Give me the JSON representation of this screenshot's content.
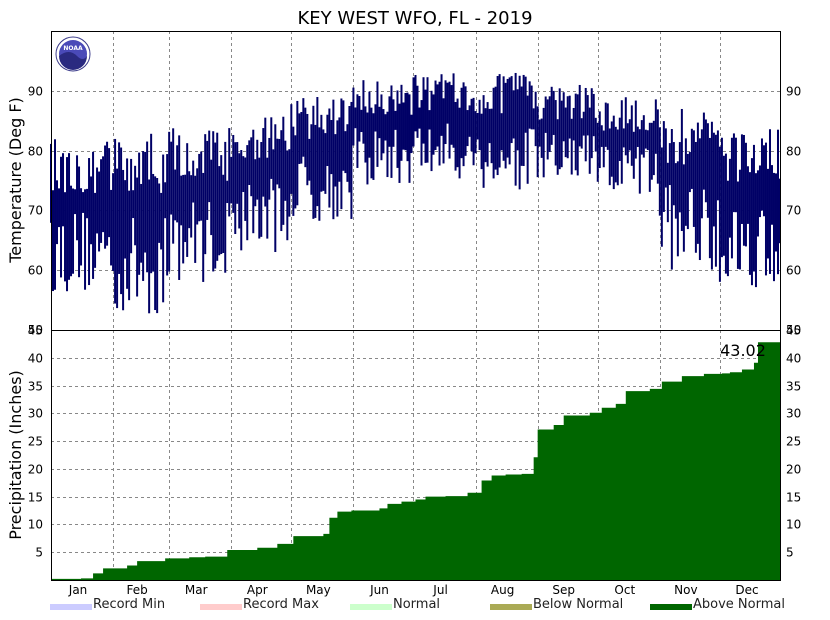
{
  "chart_data": [
    {
      "type": "bar",
      "title": "KEY WEST WFO, FL - 2019",
      "ylabel": "Temperature (Deg F)",
      "ylim": [
        50,
        100
      ],
      "yticks": [
        50,
        60,
        70,
        80,
        90
      ],
      "grid": true,
      "bar_color": "#000066",
      "note": "daily high/low temperature range bars",
      "monthly_high_low": [
        {
          "month": "Jan",
          "high": 82,
          "low": 56
        },
        {
          "month": "Feb",
          "high": 83,
          "low": 52
        },
        {
          "month": "Mar",
          "high": 84,
          "low": 58
        },
        {
          "month": "Apr",
          "high": 86,
          "low": 63
        },
        {
          "month": "May",
          "high": 89,
          "low": 68
        },
        {
          "month": "Jun",
          "high": 92,
          "low": 74
        },
        {
          "month": "Jul",
          "high": 93,
          "low": 75
        },
        {
          "month": "Aug",
          "high": 93,
          "low": 73
        },
        {
          "month": "Sep",
          "high": 91,
          "low": 74
        },
        {
          "month": "Oct",
          "high": 89,
          "low": 72
        },
        {
          "month": "Nov",
          "high": 87,
          "low": 60
        },
        {
          "month": "Dec",
          "high": 84,
          "low": 57
        }
      ]
    },
    {
      "type": "area",
      "ylabel": "Precipitation (Inches)",
      "ylim": [
        0,
        45
      ],
      "yticks": [
        5,
        10,
        15,
        20,
        25,
        30,
        35,
        40,
        45
      ],
      "grid": true,
      "fill_color": "#006600",
      "annotation": "43.02",
      "series": [
        {
          "name": "Above Normal",
          "points": [
            [
              1,
              0.2
            ],
            [
              16,
              0.3
            ],
            [
              22,
              1.2
            ],
            [
              27,
              2.1
            ],
            [
              39,
              2.6
            ],
            [
              44,
              3.4
            ],
            [
              58,
              3.9
            ],
            [
              70,
              4.1
            ],
            [
              78,
              4.2
            ],
            [
              89,
              5.4
            ],
            [
              104,
              5.8
            ],
            [
              114,
              6.5
            ],
            [
              122,
              7.9
            ],
            [
              137,
              8.3
            ],
            [
              140,
              11.2
            ],
            [
              144,
              12.3
            ],
            [
              151,
              12.5
            ],
            [
              165,
              12.9
            ],
            [
              169,
              13.7
            ],
            [
              176,
              14.1
            ],
            [
              183,
              14.5
            ],
            [
              188,
              15.0
            ],
            [
              198,
              15.1
            ],
            [
              209,
              15.7
            ],
            [
              216,
              17.9
            ],
            [
              221,
              18.8
            ],
            [
              228,
              19.0
            ],
            [
              236,
              19.1
            ],
            [
              242,
              22.1
            ],
            [
              244,
              27.1
            ],
            [
              252,
              27.9
            ],
            [
              257,
              29.6
            ],
            [
              270,
              30.1
            ],
            [
              276,
              31.0
            ],
            [
              283,
              31.7
            ],
            [
              288,
              34.0
            ],
            [
              300,
              34.4
            ],
            [
              306,
              35.7
            ],
            [
              316,
              36.7
            ],
            [
              327,
              37.1
            ],
            [
              336,
              37.2
            ],
            [
              340,
              37.4
            ],
            [
              346,
              37.9
            ],
            [
              352,
              39.1
            ],
            [
              354,
              42.8
            ],
            [
              365,
              43.02
            ]
          ]
        }
      ]
    }
  ],
  "months": [
    "Jan",
    "Feb",
    "Mar",
    "Apr",
    "May",
    "Jun",
    "Jul",
    "Aug",
    "Sep",
    "Oct",
    "Nov",
    "Dec"
  ],
  "legend": [
    {
      "label": "Record Min",
      "color": "#ccccff"
    },
    {
      "label": "Record Max",
      "color": "#ffcccc"
    },
    {
      "label": "Normal",
      "color": "#ccffcc"
    },
    {
      "label": "Below Normal",
      "color": "#aaaa55"
    },
    {
      "label": "Above Normal",
      "color": "#006600"
    }
  ],
  "logo": {
    "text": "NOAA"
  }
}
